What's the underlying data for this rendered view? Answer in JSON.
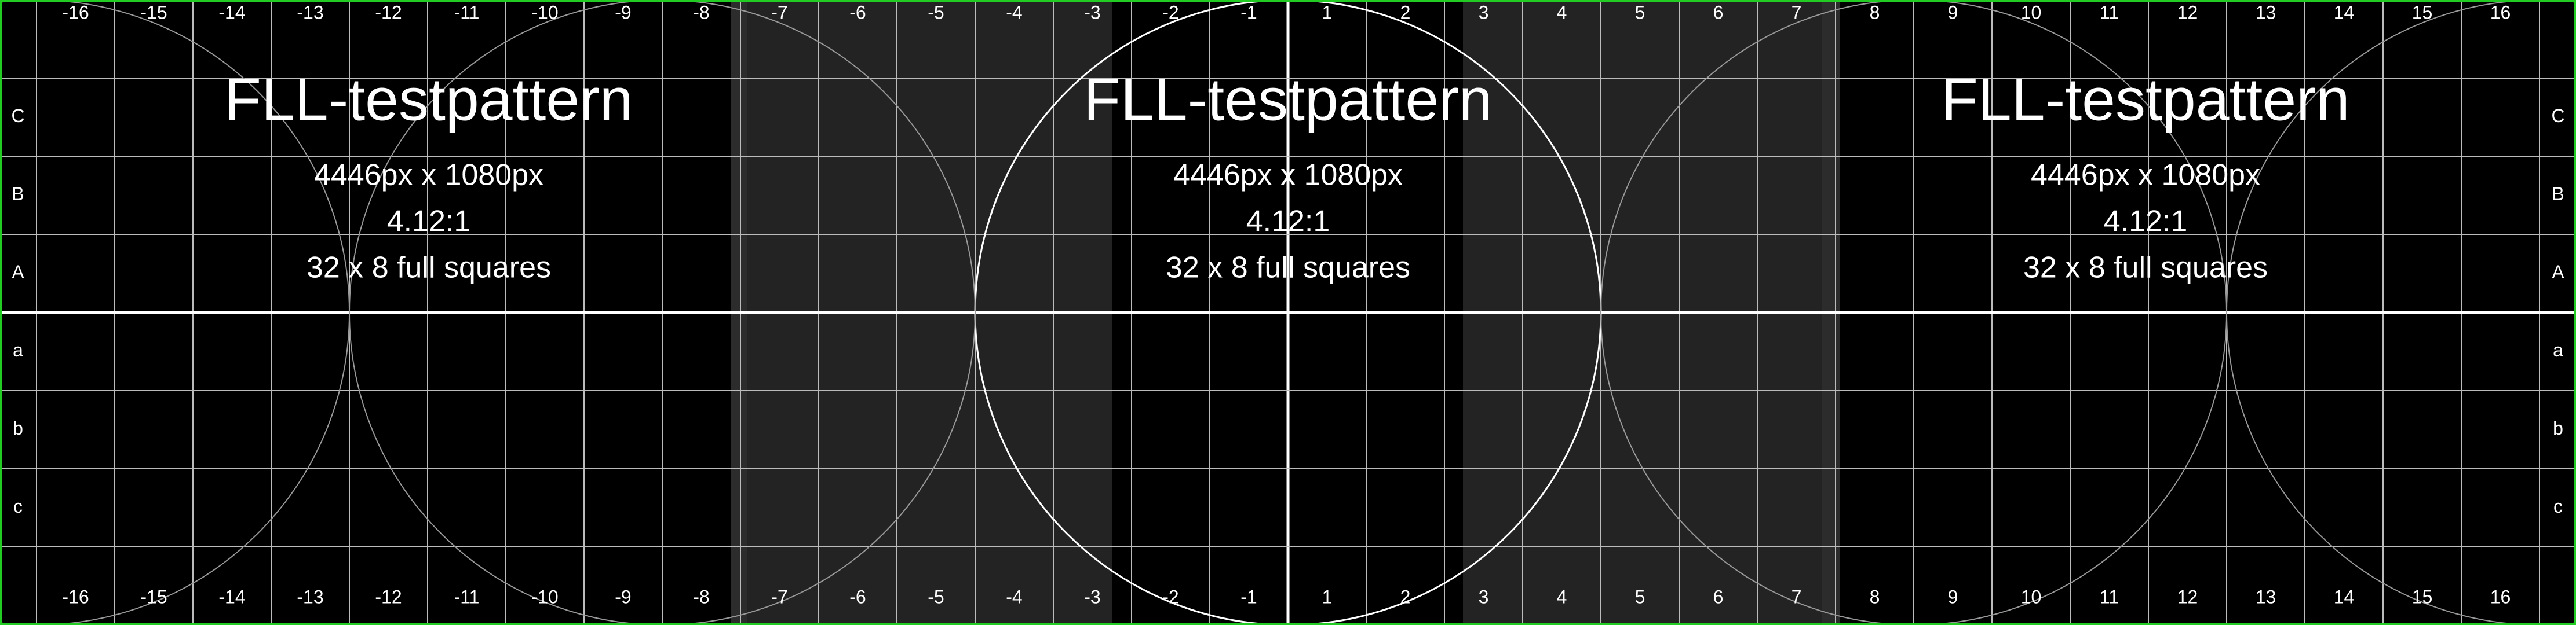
{
  "labels": {
    "title": "FLL-testpattern",
    "resolution": "4446px x 1080px",
    "ratio": "4.12:1",
    "squares": "32 x 8 full squares"
  },
  "columns": [
    "-16",
    "-15",
    "-14",
    "-13",
    "-12",
    "-11",
    "-10",
    "-9",
    "-8",
    "-7",
    "-6",
    "-5",
    "-4",
    "-3",
    "-2",
    "-1",
    "1",
    "2",
    "3",
    "4",
    "5",
    "6",
    "7",
    "8",
    "9",
    "10",
    "11",
    "12",
    "13",
    "14",
    "15",
    "16"
  ],
  "rows": [
    "C",
    "B",
    "A",
    "a",
    "b",
    "c"
  ]
}
